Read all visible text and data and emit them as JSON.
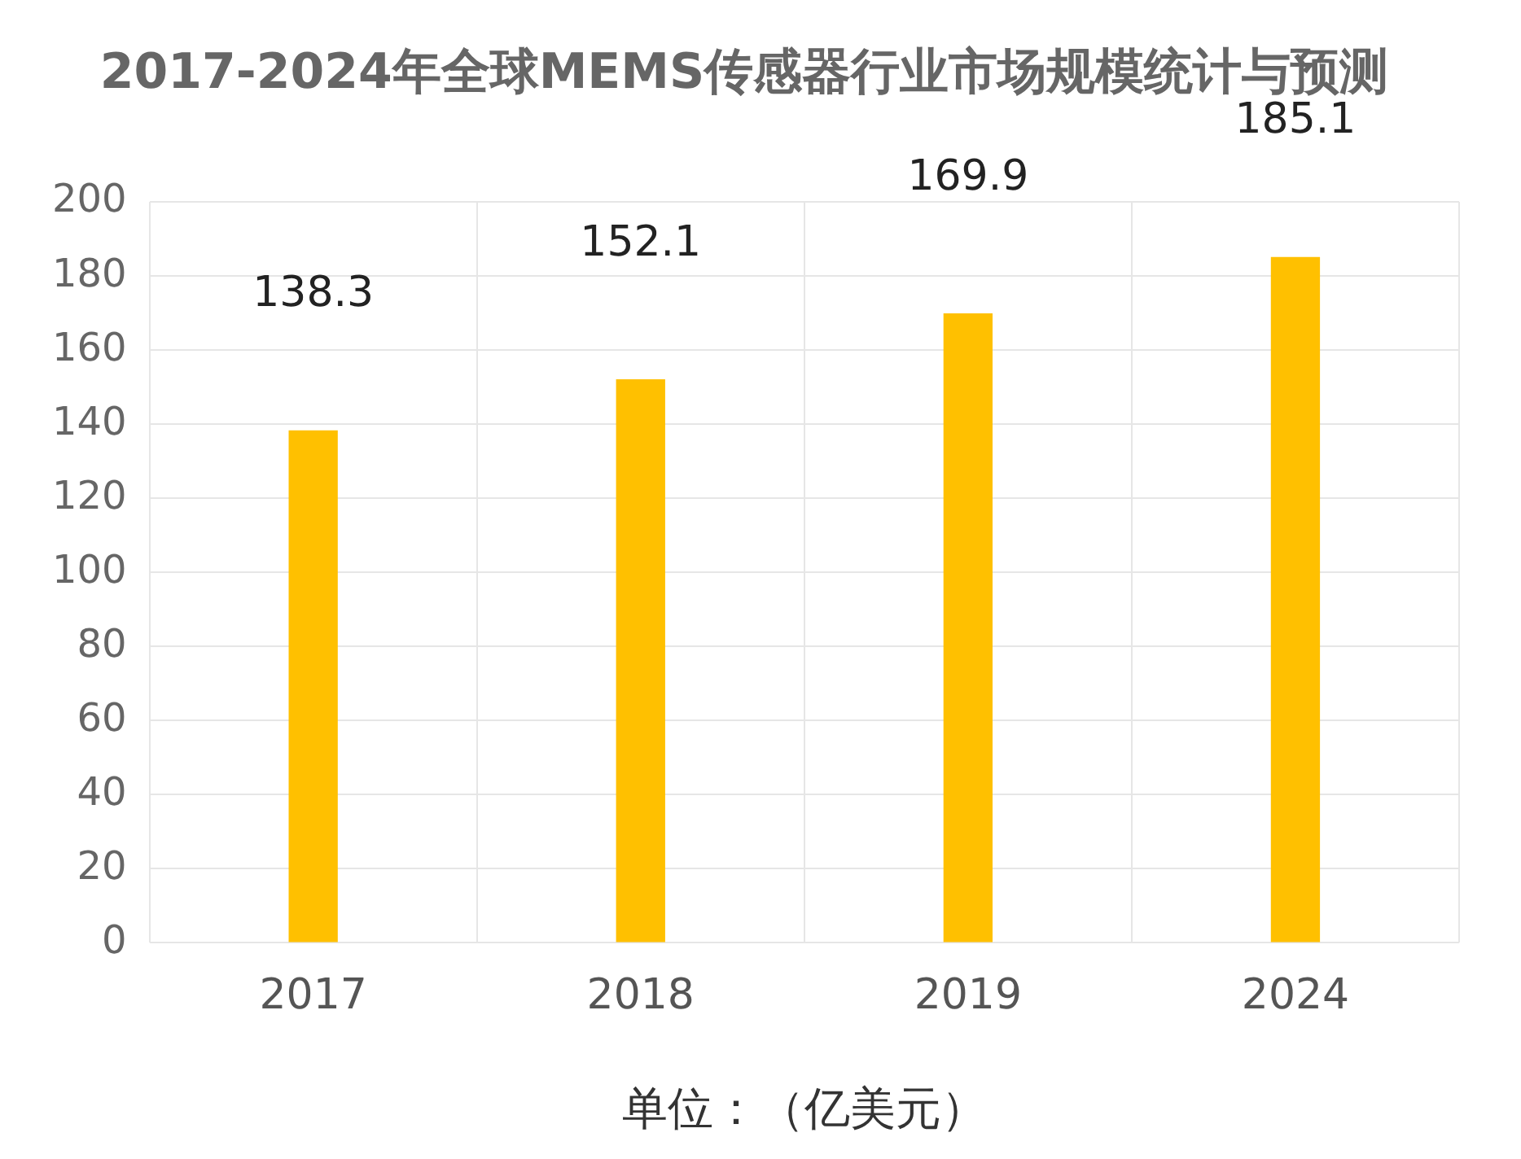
{
  "chart_data": {
    "type": "bar",
    "title": "2017-2024年全球MEMS传感器行业市场规模统计与预测",
    "xlabel": "单位：（亿美元）",
    "categories": [
      "2017",
      "2018",
      "2019",
      "2024"
    ],
    "values": [
      138.3,
      152.1,
      169.9,
      185.1
    ],
    "color": "#ffc000",
    "ylim": [
      0,
      200
    ],
    "yticks": [
      0,
      20,
      40,
      60,
      80,
      100,
      120,
      140,
      160,
      180,
      200
    ],
    "grid": true,
    "data_labels": true,
    "legend": false
  }
}
